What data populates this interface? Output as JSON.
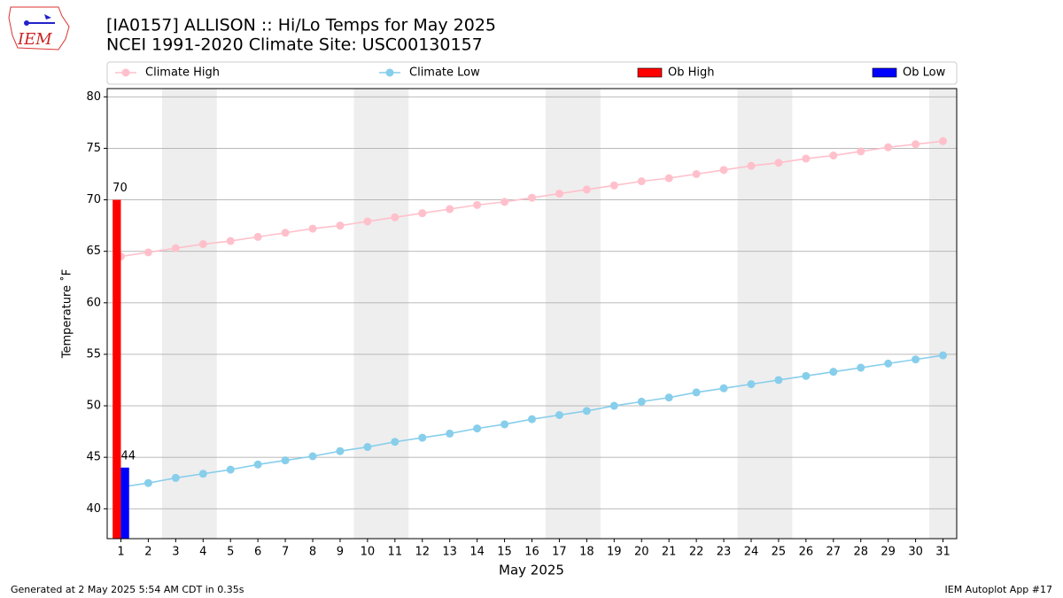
{
  "chart_data": {
    "type": "line",
    "logo_text": "IEM",
    "title": "[IA0157] ALLISON :: Hi/Lo Temps for May 2025",
    "subtitle": "NCEI 1991-2020 Climate Site: USC00130157",
    "xlabel": "May 2025",
    "ylabel": "Temperature ˚F",
    "footer_left": "Generated at 2 May 2025 5:54 AM CDT in 0.35s",
    "footer_right": "IEM Autoplot App #17",
    "x": [
      1,
      2,
      3,
      4,
      5,
      6,
      7,
      8,
      9,
      10,
      11,
      12,
      13,
      14,
      15,
      16,
      17,
      18,
      19,
      20,
      21,
      22,
      23,
      24,
      25,
      26,
      27,
      28,
      29,
      30,
      31
    ],
    "xlim": [
      0.5,
      31.5
    ],
    "xticks": [
      1,
      2,
      3,
      4,
      5,
      6,
      7,
      8,
      9,
      10,
      11,
      12,
      13,
      14,
      15,
      16,
      17,
      18,
      19,
      20,
      21,
      22,
      23,
      24,
      25,
      26,
      27,
      28,
      29,
      30,
      31
    ],
    "ylim": [
      37.1,
      80.8
    ],
    "yticks": [
      40,
      45,
      50,
      55,
      60,
      65,
      70,
      75,
      80
    ],
    "grid": true,
    "shaded_ranges": [
      [
        2.5,
        4.5
      ],
      [
        9.5,
        11.5
      ],
      [
        16.5,
        18.5
      ],
      [
        23.5,
        25.5
      ],
      [
        30.5,
        31.5
      ]
    ],
    "series": [
      {
        "name": "Climate High",
        "type": "line",
        "color": "#ffc0cb",
        "values": [
          64.5,
          64.9,
          65.3,
          65.7,
          66.0,
          66.4,
          66.8,
          67.2,
          67.5,
          67.9,
          68.3,
          68.7,
          69.1,
          69.5,
          69.8,
          70.2,
          70.6,
          71.0,
          71.4,
          71.8,
          72.1,
          72.5,
          72.9,
          73.3,
          73.6,
          74.0,
          74.3,
          74.7,
          75.1,
          75.4,
          75.7
        ]
      },
      {
        "name": "Climate Low",
        "type": "line",
        "color": "#87ceeb",
        "values": [
          42.1,
          42.5,
          43.0,
          43.4,
          43.8,
          44.3,
          44.7,
          45.1,
          45.6,
          46.0,
          46.5,
          46.9,
          47.3,
          47.8,
          48.2,
          48.7,
          49.1,
          49.5,
          50.0,
          50.4,
          50.8,
          51.3,
          51.7,
          52.1,
          52.5,
          52.9,
          53.3,
          53.7,
          54.1,
          54.5,
          54.9
        ]
      },
      {
        "name": "Ob High",
        "type": "bar",
        "color": "#ff0000",
        "values": [
          70,
          null,
          null,
          null,
          null,
          null,
          null,
          null,
          null,
          null,
          null,
          null,
          null,
          null,
          null,
          null,
          null,
          null,
          null,
          null,
          null,
          null,
          null,
          null,
          null,
          null,
          null,
          null,
          null,
          null,
          null
        ]
      },
      {
        "name": "Ob Low",
        "type": "bar",
        "color": "#0000ff",
        "values": [
          44,
          null,
          null,
          null,
          null,
          null,
          null,
          null,
          null,
          null,
          null,
          null,
          null,
          null,
          null,
          null,
          null,
          null,
          null,
          null,
          null,
          null,
          null,
          null,
          null,
          null,
          null,
          null,
          null,
          null,
          null
        ]
      }
    ]
  }
}
